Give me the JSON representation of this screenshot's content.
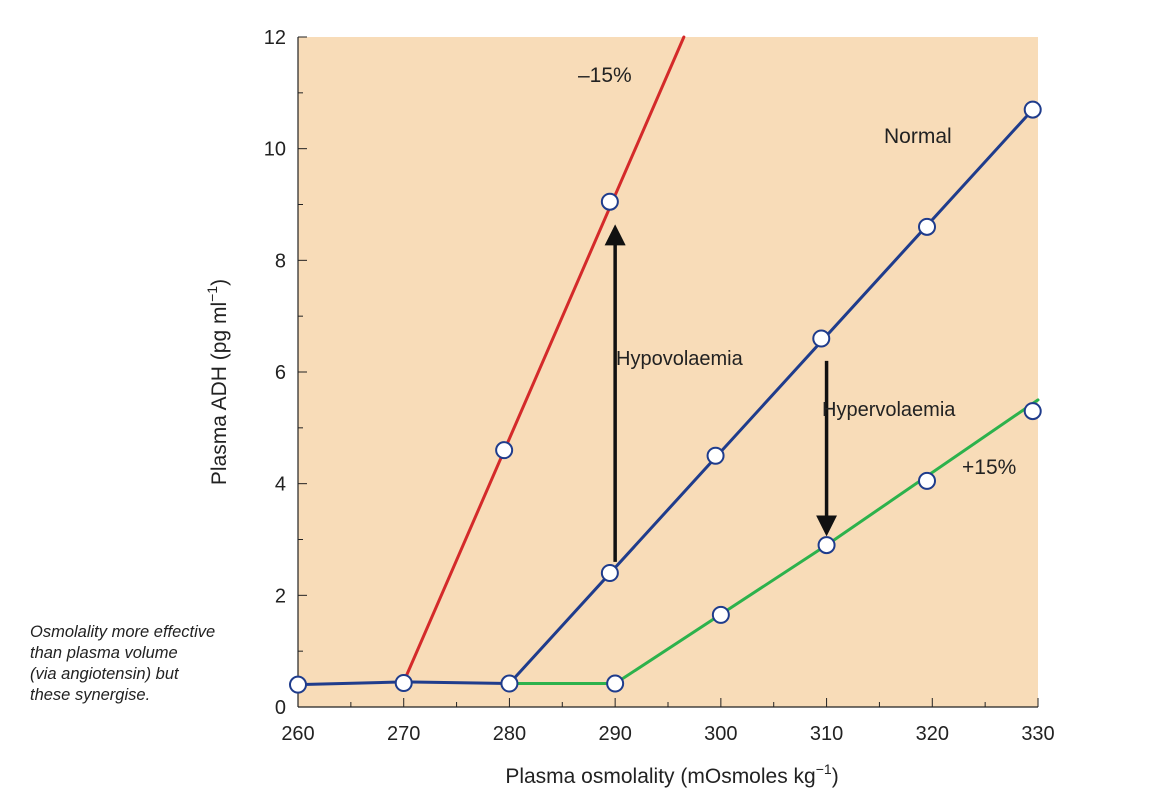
{
  "chart_data": {
    "type": "line",
    "title": "",
    "xlabel": "Plasma osmolality (mOsmoles kg",
    "xlabel_sup": "−1",
    "xlabel_end": ")",
    "ylabel": "Plasma ADH (pg ml",
    "ylabel_sup": "−1",
    "ylabel_end": ")",
    "xlim": [
      260,
      330
    ],
    "ylim": [
      0,
      12
    ],
    "xticks": [
      260,
      270,
      280,
      290,
      300,
      310,
      320,
      330
    ],
    "yticks": [
      0,
      2,
      4,
      6,
      8,
      10,
      12
    ],
    "background": "#f8dcb8",
    "series": [
      {
        "name": "-15%",
        "label": "–15%",
        "color": "#d42a2a",
        "line": [
          [
            270,
            0.45
          ],
          [
            296.5,
            12
          ]
        ],
        "points": [
          [
            279.5,
            4.6
          ],
          [
            289.5,
            9.05
          ]
        ]
      },
      {
        "name": "Normal",
        "label": "Normal",
        "color": "#1f3c8c",
        "line": [
          [
            260,
            0.4
          ],
          [
            270,
            0.45
          ],
          [
            280,
            0.42
          ],
          [
            329.5,
            10.7
          ]
        ],
        "points": [
          [
            260,
            0.4
          ],
          [
            270,
            0.43
          ],
          [
            280,
            0.42
          ],
          [
            289.5,
            2.4
          ],
          [
            299.5,
            4.5
          ],
          [
            309.5,
            6.6
          ],
          [
            319.5,
            8.6
          ],
          [
            329.5,
            10.7
          ]
        ]
      },
      {
        "name": "+15%",
        "label": "+15%",
        "color": "#2db24c",
        "line": [
          [
            280,
            0.42
          ],
          [
            290,
            0.42
          ],
          [
            310,
            2.9
          ],
          [
            330,
            5.5
          ]
        ],
        "points": [
          [
            290,
            0.42
          ],
          [
            300,
            1.65
          ],
          [
            310,
            2.9
          ],
          [
            319.5,
            4.05
          ],
          [
            329.5,
            5.3
          ]
        ]
      }
    ],
    "arrows": [
      {
        "label": "Hypovolaemia",
        "x": 290,
        "from": 2.6,
        "to": 8.6
      },
      {
        "label": "Hypervolaemia",
        "x": 310,
        "from": 6.2,
        "to": 3.1
      }
    ]
  },
  "note": {
    "lines": [
      "Osmolality more effective",
      "than plasma volume",
      "(via angiotensin) but",
      "these synergise."
    ]
  }
}
